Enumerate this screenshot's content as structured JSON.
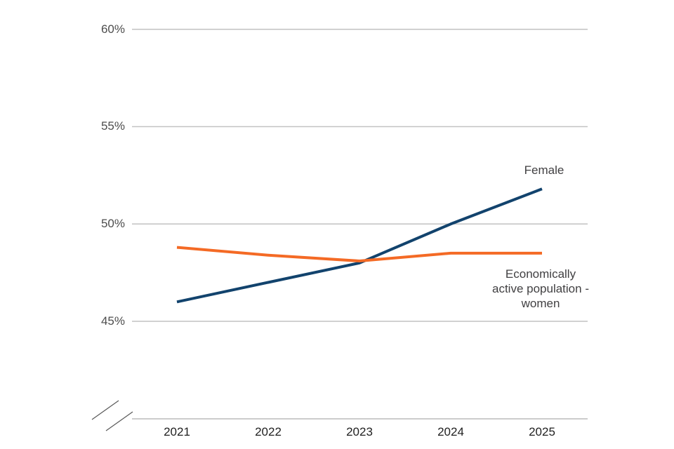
{
  "chart_data": {
    "type": "line",
    "title": "",
    "xlabel": "",
    "ylabel": "",
    "x_labels": [
      "2021",
      "2022",
      "2023",
      "2024",
      "2025"
    ],
    "y_ticks": [
      {
        "value": 60,
        "label": "60%"
      },
      {
        "value": 55,
        "label": "55%"
      },
      {
        "value": 50,
        "label": "50%"
      },
      {
        "value": 45,
        "label": "45%"
      }
    ],
    "ylim": [
      45,
      60
    ],
    "y_axis_break": true,
    "grid": "horizontal",
    "gridline_color": "#C2C2C2",
    "legend_position": "end-of-line-labels",
    "series": [
      {
        "id": "female",
        "name": "Female",
        "end_label": "Female",
        "color": "#12436D",
        "values": [
          46.0,
          47.0,
          48.0,
          50.0,
          51.8
        ]
      },
      {
        "id": "eap-women",
        "name": "Economically active population - women",
        "end_label": "Economically\nactive population -\nwomen",
        "color": "#F46A25",
        "values": [
          48.8,
          48.4,
          48.1,
          48.5,
          48.5
        ]
      }
    ]
  }
}
